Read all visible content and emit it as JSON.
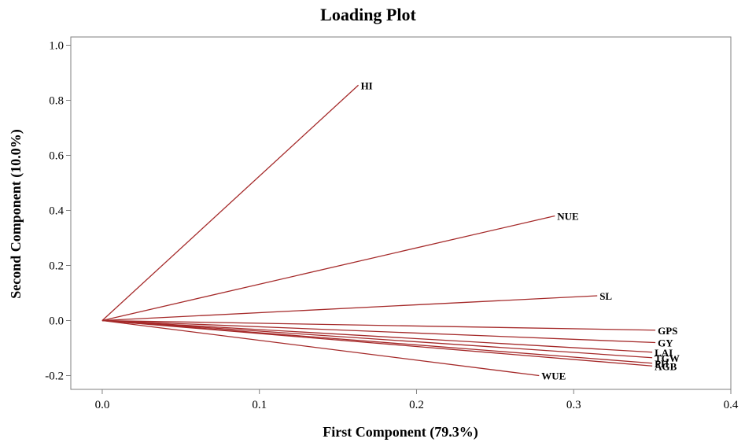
{
  "chart_data": {
    "type": "line",
    "title": "Loading Plot",
    "xlabel": "First Component (79.3%)",
    "ylabel": "Second Component (10.0%)",
    "xlim": [
      -0.02,
      0.4
    ],
    "ylim": [
      -0.25,
      1.03
    ],
    "xticks": [
      0.0,
      0.1,
      0.2,
      0.3,
      0.4
    ],
    "xtick_labels": [
      "0.0",
      "0.1",
      "0.2",
      "0.3",
      "0.4"
    ],
    "yticks": [
      -0.2,
      0.0,
      0.2,
      0.4,
      0.6,
      0.8,
      1.0
    ],
    "ytick_labels": [
      "-0.2",
      "0.0",
      "0.2",
      "0.4",
      "0.6",
      "0.8",
      "1.0"
    ],
    "grid": false,
    "line_color": "#a52a2a",
    "origin": [
      0,
      0
    ],
    "series": [
      {
        "name": "HI",
        "x": 0.163,
        "y": 0.855
      },
      {
        "name": "NUE",
        "x": 0.288,
        "y": 0.38
      },
      {
        "name": "SL",
        "x": 0.315,
        "y": 0.09
      },
      {
        "name": "GPS",
        "x": 0.352,
        "y": -0.035
      },
      {
        "name": "GY",
        "x": 0.352,
        "y": -0.08
      },
      {
        "name": "LAI",
        "x": 0.35,
        "y": -0.115
      },
      {
        "name": "TGW",
        "x": 0.35,
        "y": -0.135
      },
      {
        "name": "PH",
        "x": 0.35,
        "y": -0.155
      },
      {
        "name": "AGB",
        "x": 0.35,
        "y": -0.165
      },
      {
        "name": "WUE",
        "x": 0.278,
        "y": -0.2
      }
    ]
  }
}
